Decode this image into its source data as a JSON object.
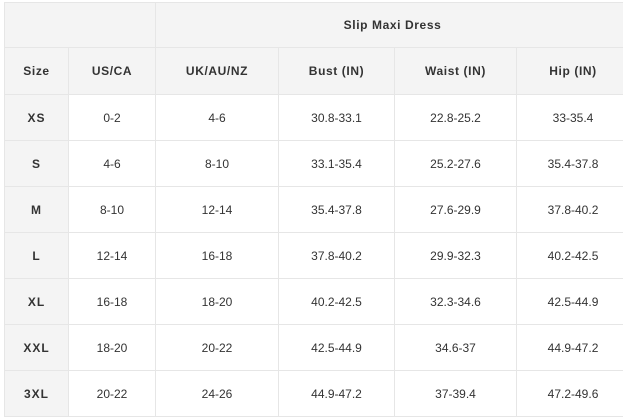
{
  "title": "Slip Maxi Dress",
  "headers": [
    "Size",
    "US/CA",
    "UK/AU/NZ",
    "Bust (IN)",
    "Waist (IN)",
    "Hip (IN)"
  ],
  "rows": [
    [
      "XS",
      "0-2",
      "4-6",
      "30.8-33.1",
      "22.8-25.2",
      "33-35.4"
    ],
    [
      "S",
      "4-6",
      "8-10",
      "33.1-35.4",
      "25.2-27.6",
      "35.4-37.8"
    ],
    [
      "M",
      "8-10",
      "12-14",
      "35.4-37.8",
      "27.6-29.9",
      "37.8-40.2"
    ],
    [
      "L",
      "12-14",
      "16-18",
      "37.8-40.2",
      "29.9-32.3",
      "40.2-42.5"
    ],
    [
      "XL",
      "16-18",
      "18-20",
      "40.2-42.5",
      "32.3-34.6",
      "42.5-44.9"
    ],
    [
      "XXL",
      "18-20",
      "20-22",
      "42.5-44.9",
      "34.6-37",
      "44.9-47.2"
    ],
    [
      "3XL",
      "20-22",
      "24-26",
      "44.9-47.2",
      "37-39.4",
      "47.2-49.6"
    ]
  ]
}
